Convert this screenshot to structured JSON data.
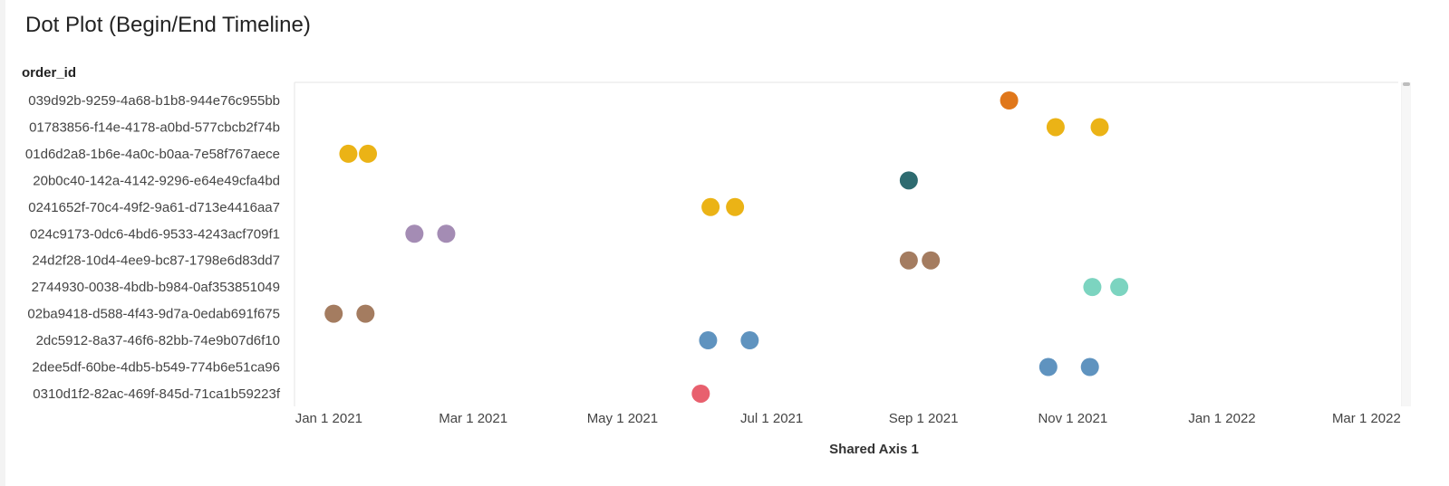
{
  "chart_data": {
    "type": "scatter",
    "title": "Dot Plot (Begin/End Timeline)",
    "ylabel": "order_id",
    "xlabel": "Shared Axis 1",
    "xlim": [
      "2020-12-18",
      "2022-03-14"
    ],
    "xticks": [
      "Jan 1 2021",
      "Mar 1 2021",
      "May 1 2021",
      "Jul 1 2021",
      "Sep 1 2021",
      "Nov 1 2021",
      "Jan 1 2022",
      "Mar 1 2022"
    ],
    "xtick_dates": [
      "2021-01-01",
      "2021-03-01",
      "2021-05-01",
      "2021-07-01",
      "2021-09-01",
      "2021-11-01",
      "2022-01-01",
      "2022-03-01"
    ],
    "grid": false,
    "rows": [
      {
        "label": "039d92b-9259-4a68-b1b8-944e76c955bb",
        "color": "#e0771a",
        "points": [
          "2021-10-06"
        ]
      },
      {
        "label": "01783856-f14e-4178-a0bd-577cbcb2f74b",
        "color": "#ebb316",
        "points": [
          "2021-10-25",
          "2021-11-12"
        ]
      },
      {
        "label": "01d6d2a8-1b6e-4a0c-b0aa-7e58f767aece",
        "color": "#ebb316",
        "points": [
          "2021-01-09",
          "2021-01-17"
        ]
      },
      {
        "label": "20b0c40-142a-4142-9296-e64e49cfa4bd",
        "color": "#2e6b70",
        "points": [
          "2021-08-26"
        ]
      },
      {
        "label": "0241652f-70c4-49f2-9a61-d713e4416aa7",
        "color": "#ebb316",
        "points": [
          "2021-06-06",
          "2021-06-16"
        ]
      },
      {
        "label": "024c9173-0dc6-4bd6-9533-4243acf709f1",
        "color": "#a48cb4",
        "points": [
          "2021-02-05",
          "2021-02-18"
        ]
      },
      {
        "label": "24d2f28-10d4-4ee9-bc87-1798e6d83dd7",
        "color": "#a47c60",
        "points": [
          "2021-08-26",
          "2021-09-04"
        ]
      },
      {
        "label": "2744930-0038-4bdb-b984-0af353851049",
        "color": "#7cd4c0",
        "points": [
          "2021-11-09",
          "2021-11-20"
        ]
      },
      {
        "label": "02ba9418-d588-4f43-9d7a-0edab691f675",
        "color": "#a47c60",
        "points": [
          "2021-01-03",
          "2021-01-16"
        ]
      },
      {
        "label": "2dc5912-8a37-46f6-82bb-74e9b07d6f10",
        "color": "#5f93bf",
        "points": [
          "2021-06-05",
          "2021-06-22"
        ]
      },
      {
        "label": "2dee5df-60be-4db5-b549-774b6e51ca96",
        "color": "#5f93bf",
        "points": [
          "2021-10-22",
          "2021-11-08"
        ]
      },
      {
        "label": "0310d1f2-82ac-469f-845d-71ca1b59223f",
        "color": "#e8606e",
        "points": [
          "2021-06-02"
        ]
      }
    ]
  }
}
